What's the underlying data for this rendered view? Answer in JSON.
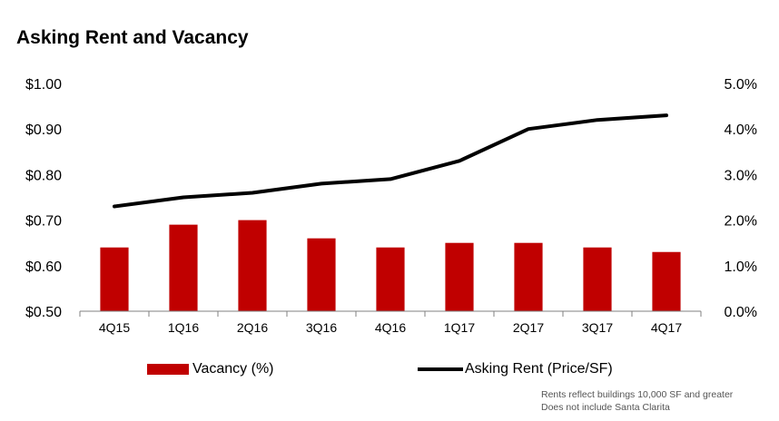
{
  "title": "Asking Rent and Vacancy",
  "colors": {
    "bar": "#c00000",
    "line": "#000000"
  },
  "chart_data": {
    "type": "bar+line",
    "title": "Asking Rent and Vacancy",
    "categories": [
      "4Q15",
      "1Q16",
      "2Q16",
      "3Q16",
      "4Q16",
      "1Q17",
      "2Q17",
      "3Q17",
      "4Q17"
    ],
    "series": [
      {
        "name": "Vacancy (%)",
        "type": "bar",
        "axis": "right",
        "values": [
          1.4,
          1.9,
          2.0,
          1.6,
          1.4,
          1.5,
          1.5,
          1.4,
          1.3
        ]
      },
      {
        "name": "Asking Rent (Price/SF)",
        "type": "line",
        "axis": "left",
        "values": [
          0.73,
          0.75,
          0.76,
          0.78,
          0.79,
          0.83,
          0.9,
          0.92,
          0.93
        ]
      }
    ],
    "left_axis": {
      "ylim": [
        0.5,
        1.0
      ],
      "ticks": [
        "$0.50",
        "$0.60",
        "$0.70",
        "$0.80",
        "$0.90",
        "$1.00"
      ]
    },
    "right_axis": {
      "ylim": [
        0.0,
        5.0
      ],
      "ticks": [
        "0.0%",
        "1.0%",
        "2.0%",
        "3.0%",
        "4.0%",
        "5.0%"
      ]
    },
    "grid": false,
    "legend_position": "bottom"
  },
  "legend": {
    "vacancy": "Vacancy (%)",
    "rent": "Asking Rent (Price/SF)"
  },
  "footnote": {
    "line1": "Rents reflect buildings 10,000 SF and greater",
    "line2": "Does not include Santa Clarita"
  }
}
